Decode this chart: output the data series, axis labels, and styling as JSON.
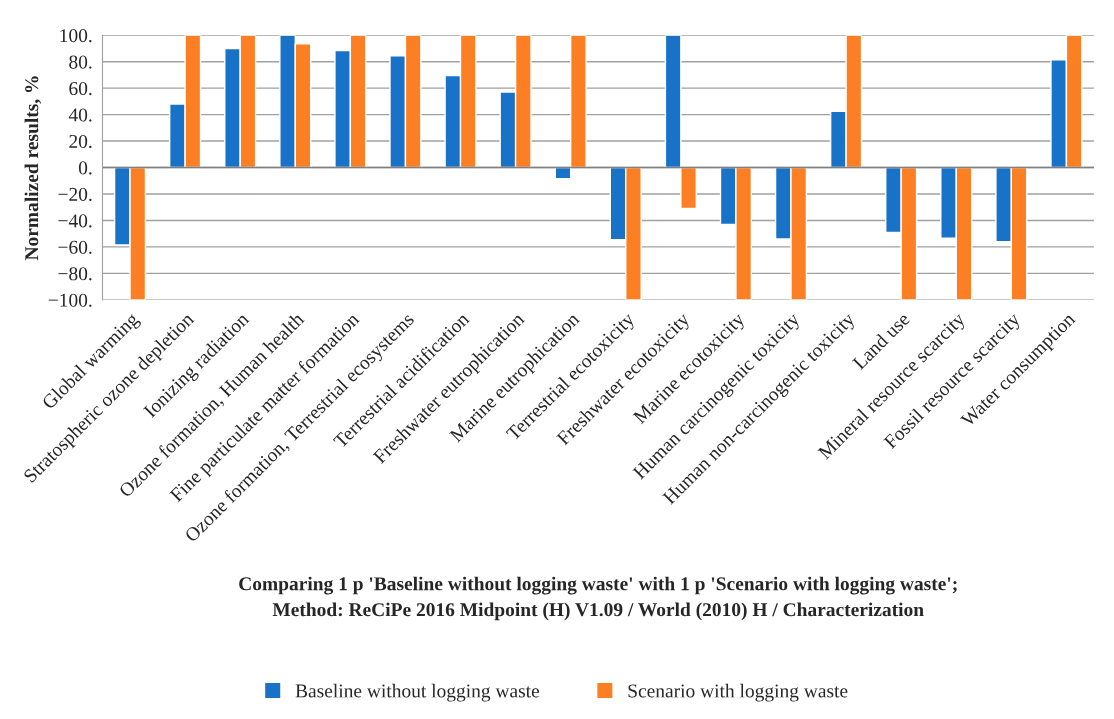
{
  "chart_data": {
    "type": "bar",
    "categories": [
      "Global warming",
      "Stratospheric ozone depletion",
      "Ionizing radiation",
      "Ozone formation, Human health",
      "Fine particulate matter formation",
      "Ozone formation, Terrestrial ecosystems",
      "Terrestrial acidification",
      "Freshwater eutrophication",
      "Marine eutrophication",
      "Terrestrial ecotoxicity",
      "Freshwater ecotoxicity",
      "Marine ecotoxicity",
      "Human carcinogenic toxicity",
      "Human non-carcinogenic toxicity",
      "Land use",
      "Mineral resource scarcity",
      "Fossil resource scarcity",
      "Water consumption"
    ],
    "series": [
      {
        "name": "Baseline without logging waste",
        "color": "#1872c8",
        "values": [
          -58.5,
          48,
          90,
          100,
          88.5,
          84.5,
          69.5,
          57,
          -8.5,
          -54.5,
          100,
          -43,
          -54,
          42.5,
          -49,
          -53.5,
          -56,
          81.5
        ]
      },
      {
        "name": "Scenario with logging waste",
        "color": "#fd7f23",
        "values": [
          -100,
          100,
          100,
          93.5,
          100,
          100,
          100,
          100,
          100,
          -100,
          -31,
          -100,
          -100,
          100,
          -100,
          -100,
          -100,
          100
        ]
      }
    ],
    "ylabel": "Normalized results, %",
    "xlabel": "Comparing 1 p 'Baseline without logging waste' with 1 p 'Scenario with logging waste';\nMethod: ReCiPe 2016 Midpoint (H) V1.09 / World (2010) H / Characterization",
    "ylim": [
      -100,
      100
    ],
    "yticks": [
      {
        "value": -100,
        "label": "−100."
      },
      {
        "value": -80,
        "label": "−80."
      },
      {
        "value": -60,
        "label": "−60."
      },
      {
        "value": -40,
        "label": "−40."
      },
      {
        "value": -20,
        "label": "−20."
      },
      {
        "value": 0,
        "label": "0."
      },
      {
        "value": 20,
        "label": "20."
      },
      {
        "value": 40,
        "label": "40."
      },
      {
        "value": 60,
        "label": "60."
      },
      {
        "value": 80,
        "label": "80."
      },
      {
        "value": 100,
        "label": "100."
      }
    ],
    "grid": "y",
    "legend": "bottom"
  }
}
